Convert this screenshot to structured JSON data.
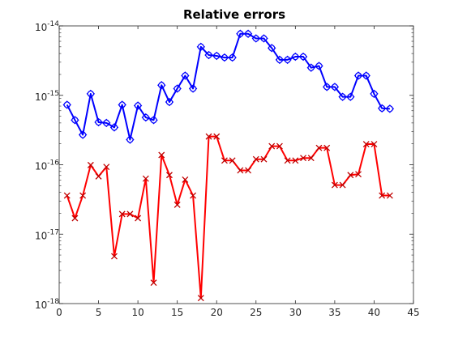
{
  "chart_data": {
    "type": "line",
    "title": "Relative errors",
    "xlabel": "",
    "ylabel": "",
    "xlim": [
      0,
      45
    ],
    "ylim": [
      1e-18,
      1e-14
    ],
    "yscale": "log",
    "grid": false,
    "legend": false,
    "x_ticks": [
      "0",
      "5",
      "10",
      "15",
      "20",
      "25",
      "30",
      "35",
      "40",
      "45"
    ],
    "y_ticks": [
      {
        "base": "10",
        "exp": "-14"
      },
      {
        "base": "10",
        "exp": "-15"
      },
      {
        "base": "10",
        "exp": "-16"
      },
      {
        "base": "10",
        "exp": "-17"
      },
      {
        "base": "10",
        "exp": "-18"
      }
    ],
    "x": [
      1,
      2,
      3,
      4,
      5,
      6,
      7,
      8,
      9,
      10,
      11,
      12,
      13,
      14,
      15,
      16,
      17,
      18,
      19,
      20,
      21,
      22,
      23,
      24,
      25,
      26,
      27,
      28,
      29,
      30,
      31,
      32,
      33,
      34,
      35,
      36,
      37,
      38,
      39,
      40,
      41,
      42
    ],
    "series": [
      {
        "color": "#0000ff",
        "marker_color": "#0000ff",
        "marker": "circle+diamond",
        "values": [
          7.3e-16,
          4.4e-16,
          2.7e-16,
          1.05e-15,
          4.1e-16,
          4e-16,
          3.45e-16,
          7.3e-16,
          2.3e-16,
          7.1e-16,
          4.8e-16,
          4.4e-16,
          1.4e-15,
          8e-16,
          1.25e-15,
          1.92e-15,
          1.25e-15,
          5e-15,
          3.8e-15,
          3.7e-15,
          3.5e-15,
          3.5e-15,
          7.7e-15,
          7.7e-15,
          6.6e-15,
          6.6e-15,
          4.8e-15,
          3.25e-15,
          3.25e-15,
          3.6e-15,
          3.6e-15,
          2.5e-15,
          2.65e-15,
          1.32e-15,
          1.32e-15,
          9.5e-16,
          9.5e-16,
          1.92e-15,
          1.92e-15,
          1.05e-15,
          6.5e-16,
          6.4e-16
        ]
      },
      {
        "color": "#ff0000",
        "marker_color": "#c00000",
        "marker": "x",
        "values": [
          3.6e-17,
          1.7e-17,
          3.6e-17,
          9.9e-17,
          6.8e-17,
          9.3e-17,
          4.8e-18,
          1.95e-17,
          1.95e-17,
          1.7e-17,
          6.3e-17,
          2e-18,
          1.38e-16,
          7.1e-17,
          2.65e-17,
          6.1e-17,
          3.6e-17,
          1.2e-18,
          2.55e-16,
          2.55e-16,
          1.15e-16,
          1.15e-16,
          8.3e-17,
          8.3e-17,
          1.2e-16,
          1.2e-16,
          1.85e-16,
          1.85e-16,
          1.15e-16,
          1.15e-16,
          1.25e-16,
          1.25e-16,
          1.75e-16,
          1.75e-16,
          5.1e-17,
          5.1e-17,
          7.1e-17,
          7.3e-17,
          1.98e-16,
          1.98e-16,
          3.6e-17,
          3.6e-17
        ]
      }
    ]
  }
}
